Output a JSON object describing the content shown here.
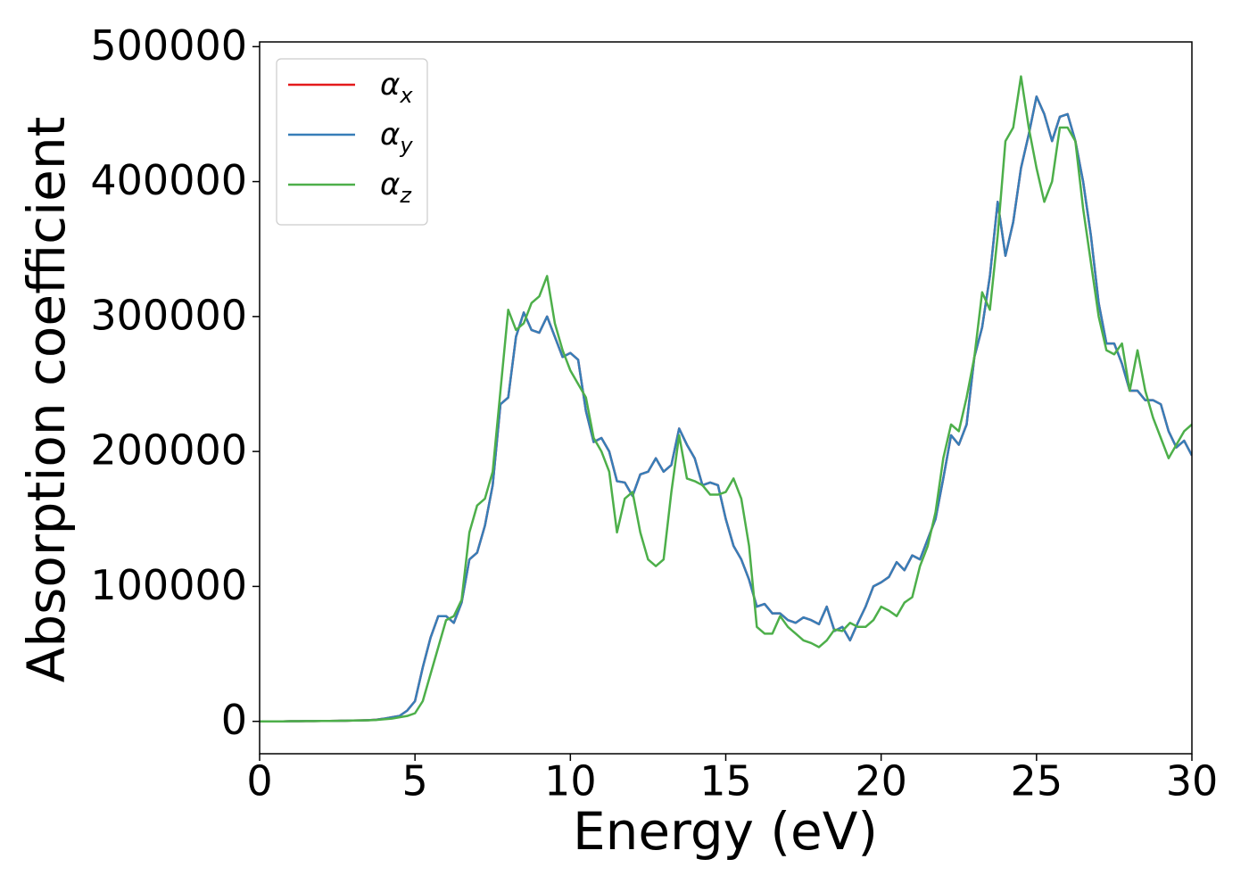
{
  "chart_data": {
    "type": "line",
    "xlabel": "Energy (eV)",
    "ylabel": "Absorption coefficient",
    "xlim": [
      0,
      30
    ],
    "xticks": [
      0,
      5,
      10,
      15,
      20,
      25,
      30
    ],
    "ylim": [
      -24000,
      503500
    ],
    "yticks": [
      0,
      100000,
      200000,
      300000,
      400000,
      500000
    ],
    "legend": "upper left",
    "grid": false,
    "x": [
      0,
      0.25,
      0.5,
      0.75,
      1,
      1.25,
      1.5,
      1.75,
      2,
      2.25,
      2.5,
      2.75,
      3,
      3.25,
      3.5,
      3.75,
      4,
      4.25,
      4.5,
      4.75,
      5,
      5.25,
      5.5,
      5.75,
      6,
      6.25,
      6.5,
      6.75,
      7,
      7.25,
      7.5,
      7.75,
      8,
      8.25,
      8.5,
      8.75,
      9,
      9.25,
      9.5,
      9.75,
      10,
      10.25,
      10.5,
      10.75,
      11,
      11.25,
      11.5,
      11.75,
      12,
      12.25,
      12.5,
      12.75,
      13,
      13.25,
      13.5,
      13.75,
      14,
      14.25,
      14.5,
      14.75,
      15,
      15.25,
      15.5,
      15.75,
      16,
      16.25,
      16.5,
      16.75,
      17,
      17.25,
      17.5,
      17.75,
      18,
      18.25,
      18.5,
      18.75,
      19,
      19.25,
      19.5,
      19.75,
      20,
      20.25,
      20.5,
      20.75,
      21,
      21.25,
      21.5,
      21.75,
      22,
      22.25,
      22.5,
      22.75,
      23,
      23.25,
      23.5,
      23.75,
      24,
      24.25,
      24.5,
      24.75,
      25,
      25.25,
      25.5,
      25.75,
      26,
      26.25,
      26.5,
      26.75,
      27,
      27.25,
      27.5,
      27.75,
      28,
      28.25,
      28.5,
      28.75,
      29,
      29.25,
      29.5,
      29.75,
      30
    ],
    "series": [
      {
        "name": "αx",
        "color": "#e41a1c",
        "values": [
          0,
          0,
          0,
          0,
          100,
          100,
          200,
          200,
          300,
          300,
          400,
          500,
          600,
          700,
          900,
          1200,
          2000,
          3000,
          4000,
          8000,
          15000,
          40000,
          62000,
          78000,
          78000,
          73000,
          88000,
          120000,
          125000,
          145000,
          175000,
          235000,
          240000,
          285000,
          303000,
          290000,
          288000,
          300000,
          285000,
          270000,
          273000,
          268000,
          230000,
          207000,
          210000,
          200000,
          178000,
          177000,
          167000,
          183000,
          185000,
          195000,
          185000,
          190000,
          217000,
          205000,
          195000,
          175000,
          177000,
          175000,
          150000,
          130000,
          120000,
          105000,
          85000,
          87000,
          80000,
          80000,
          75000,
          73000,
          77000,
          75000,
          72000,
          85000,
          67000,
          70000,
          60000,
          73000,
          85000,
          100000,
          103000,
          107000,
          118000,
          112000,
          123000,
          120000,
          135000,
          150000,
          180000,
          212000,
          205000,
          220000,
          270000,
          292000,
          330000,
          385000,
          345000,
          370000,
          410000,
          435000,
          463000,
          450000,
          430000,
          448000,
          450000,
          430000,
          400000,
          360000,
          310000,
          280000,
          280000,
          265000,
          245000,
          245000,
          238000,
          238000,
          235000,
          215000,
          203000,
          208000,
          197000
        ]
      },
      {
        "name": "αy",
        "color": "#377eb8",
        "values": [
          0,
          0,
          0,
          0,
          100,
          100,
          200,
          200,
          300,
          300,
          400,
          500,
          600,
          700,
          900,
          1200,
          2000,
          3000,
          4000,
          8000,
          15000,
          40000,
          62000,
          78000,
          78000,
          73000,
          88000,
          120000,
          125000,
          145000,
          175000,
          235000,
          240000,
          285000,
          303000,
          290000,
          288000,
          300000,
          285000,
          270000,
          273000,
          268000,
          230000,
          207000,
          210000,
          200000,
          178000,
          177000,
          167000,
          183000,
          185000,
          195000,
          185000,
          190000,
          217000,
          205000,
          195000,
          175000,
          177000,
          175000,
          150000,
          130000,
          120000,
          105000,
          85000,
          87000,
          80000,
          80000,
          75000,
          73000,
          77000,
          75000,
          72000,
          85000,
          67000,
          70000,
          60000,
          73000,
          85000,
          100000,
          103000,
          107000,
          118000,
          112000,
          123000,
          120000,
          135000,
          150000,
          180000,
          212000,
          205000,
          220000,
          270000,
          292000,
          330000,
          385000,
          345000,
          370000,
          410000,
          435000,
          463000,
          450000,
          430000,
          448000,
          450000,
          430000,
          400000,
          360000,
          310000,
          280000,
          280000,
          265000,
          245000,
          245000,
          238000,
          238000,
          235000,
          215000,
          203000,
          208000,
          197000
        ]
      },
      {
        "name": "αz",
        "color": "#4daf4a",
        "values": [
          0,
          0,
          0,
          0,
          100,
          100,
          200,
          200,
          300,
          300,
          400,
          500,
          600,
          700,
          800,
          1000,
          1500,
          2000,
          3000,
          4000,
          6000,
          15000,
          35000,
          55000,
          75000,
          78000,
          90000,
          140000,
          160000,
          165000,
          185000,
          245000,
          305000,
          290000,
          295000,
          310000,
          315000,
          330000,
          295000,
          275000,
          260000,
          250000,
          240000,
          210000,
          200000,
          185000,
          140000,
          165000,
          170000,
          140000,
          120000,
          115000,
          120000,
          170000,
          212000,
          180000,
          178000,
          175000,
          168000,
          168000,
          170000,
          180000,
          165000,
          130000,
          70000,
          65000,
          65000,
          78000,
          70000,
          65000,
          60000,
          58000,
          55000,
          60000,
          68000,
          67000,
          73000,
          70000,
          70000,
          75000,
          85000,
          82000,
          78000,
          88000,
          92000,
          115000,
          130000,
          155000,
          195000,
          220000,
          215000,
          240000,
          270000,
          318000,
          305000,
          360000,
          430000,
          440000,
          478000,
          440000,
          410000,
          385000,
          400000,
          440000,
          440000,
          430000,
          380000,
          340000,
          300000,
          275000,
          272000,
          280000,
          245000,
          275000,
          245000,
          225000,
          210000,
          195000,
          205000,
          215000,
          220000
        ]
      }
    ]
  }
}
